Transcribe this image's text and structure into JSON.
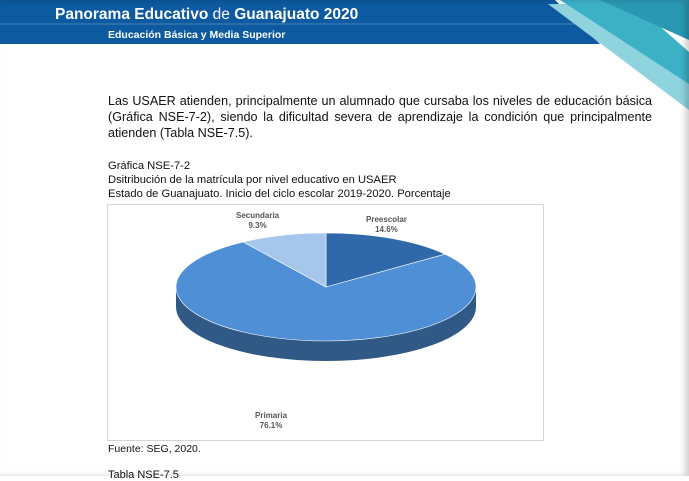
{
  "header": {
    "title_part1": "Panorama Educativo",
    "title_connector": "de",
    "title_part2": "Guanajuato 2020",
    "subtitle": "Educación Básica y Media Superior",
    "colors": {
      "banner": "#0d5aa0",
      "accent": "#3cb1c6",
      "accent_light": "#8fd3df"
    }
  },
  "body": {
    "paragraph": "Las USAER atienden, principalmente un alumnado que cursaba los niveles de educación básica (Gráfica NSE-7-2), siendo la dificultad severa de aprendizaje la condición que principalmente atienden (Tabla NSE-7.5)."
  },
  "figure": {
    "id": "Gráfica NSE-7-2",
    "title": "Dsitribución de la matrícula por nivel educativo en USAER",
    "subtitle": "Estado de Guanajuato. Inicio del ciclo escolar 2019-2020. Porcentaje",
    "source": "Fuente: SEG, 2020."
  },
  "chart_data": {
    "type": "pie",
    "style": "3d",
    "slices": [
      {
        "label": "Preescolar",
        "value": 14.6,
        "display": "14.6%",
        "color": "#2f69aa"
      },
      {
        "label": "Primaria",
        "value": 76.1,
        "display": "76.1%",
        "color": "#4f8fd6"
      },
      {
        "label": "Secundaria",
        "value": 9.3,
        "display": "9.3%",
        "color": "#a6c6ec"
      }
    ]
  },
  "next_caption": "Tabla NSE-7.5"
}
